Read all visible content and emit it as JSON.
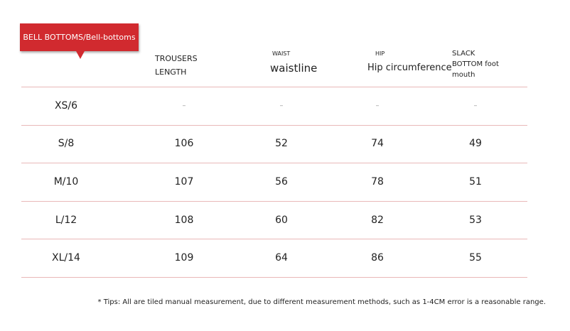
{
  "tag": "BELL BOTTOMS/Bell-bottoms",
  "columns": [
    {
      "label": "TROUSERS LENGTH"
    },
    {
      "note": "WAIST",
      "label": "waistline"
    },
    {
      "note": "HIP",
      "label": "Hip circumference"
    },
    {
      "label": "SLACK BOTTOM foot mouth"
    }
  ],
  "rows": [
    [
      "XS/6",
      "–",
      "–",
      "–",
      "–"
    ],
    [
      "S/8",
      106,
      52,
      74,
      49
    ],
    [
      "M/10",
      107,
      56,
      78,
      51
    ],
    [
      "L/12",
      108,
      60,
      82,
      53
    ],
    [
      "XL/14",
      109,
      64,
      86,
      55
    ]
  ],
  "footnote": "* Tips: All are tiled manual measurement, due to different measurement methods, such as 1-4CM error is a reasonable range."
}
